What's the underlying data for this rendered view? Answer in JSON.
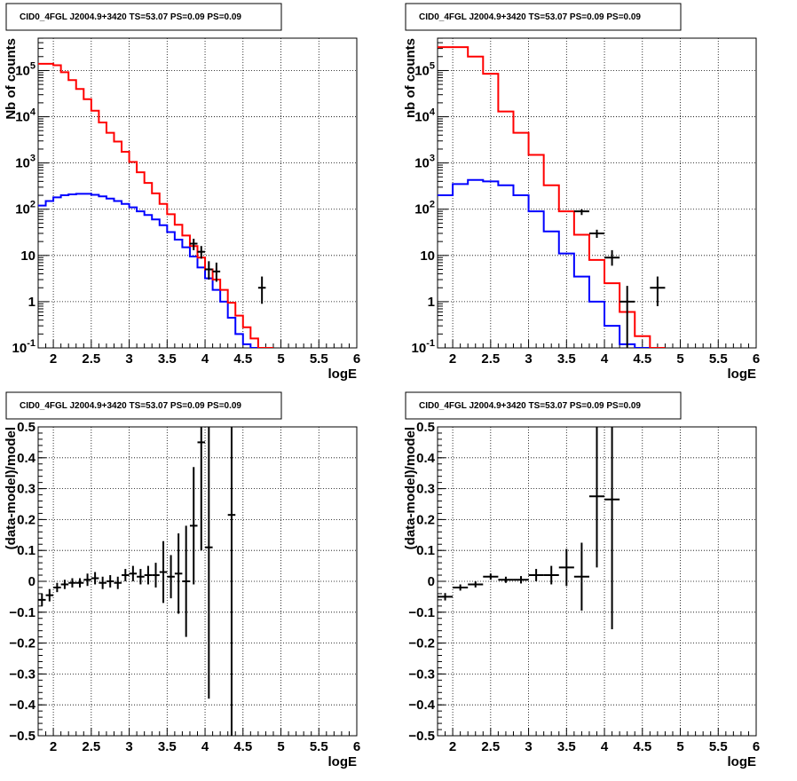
{
  "colors": {
    "data": "#000000",
    "total_model": "#ff0000",
    "component_model": "#0000ff",
    "grid": "#000000"
  },
  "panels": [
    {
      "title": "CID0_4FGL J2004.9+3420 TS=53.07 PS=0.09 PS=0.09",
      "type": "spectrum",
      "xlabel": "logE",
      "ylabel": "Nb of counts",
      "xlim": [
        1.8,
        6.0
      ],
      "ylim_log10": [
        -1,
        5.7
      ],
      "xticks": [
        "2",
        "2.5",
        "3",
        "3.5",
        "4",
        "4.5",
        "5",
        "5.5",
        "6"
      ],
      "yticks": [
        "10^-1",
        "1",
        "10",
        "10^2",
        "10^3",
        "10^4",
        "10^5"
      ],
      "bin_width": 0.1,
      "total_model": [
        140000,
        140000,
        130000,
        92000,
        62000,
        40000,
        24000,
        13500,
        7500,
        4500,
        2900,
        1750,
        1050,
        630,
        370,
        220,
        130,
        78,
        46,
        27,
        16,
        9,
        5,
        3,
        1.8,
        0.95,
        0.5,
        0.28,
        0.16,
        0.1,
        0.1
      ],
      "component_model": [
        120,
        150,
        180,
        200,
        210,
        215,
        215,
        205,
        190,
        170,
        150,
        130,
        110,
        90,
        75,
        60,
        45,
        32,
        22,
        15,
        9.5,
        5.5,
        3.2,
        1.8,
        1,
        0.45,
        0.2,
        0.12,
        0.1
      ],
      "data": [
        {
          "x": 3.85,
          "y": 18,
          "lo": 13,
          "hi": 23
        },
        {
          "x": 3.95,
          "y": 12,
          "lo": 8.5,
          "hi": 16
        },
        {
          "x": 4.05,
          "y": 5,
          "lo": 3,
          "hi": 7.5
        },
        {
          "x": 4.15,
          "y": 4.5,
          "lo": 2.7,
          "hi": 7
        },
        {
          "x": 4.75,
          "y": 2,
          "lo": 0.9,
          "hi": 3.5
        }
      ]
    },
    {
      "title": "CID0_4FGL J2004.9+3420 TS=53.07 PS=0.09 PS=0.09",
      "type": "spectrum",
      "xlabel": "logE",
      "ylabel": "nb of counts",
      "xlim": [
        1.8,
        6.0
      ],
      "ylim_log10": [
        -1,
        5.7
      ],
      "xticks": [
        "2",
        "2.5",
        "3",
        "3.5",
        "4",
        "4.5",
        "5",
        "5.5",
        "6"
      ],
      "yticks": [
        "10^-1",
        "1",
        "10",
        "10^2",
        "10^3",
        "10^4",
        "10^5"
      ],
      "bin_width": 0.2,
      "total_model": [
        320000,
        320000,
        200000,
        85000,
        13000,
        4500,
        1500,
        330,
        90,
        28,
        8,
        2.5,
        0.6,
        0.18,
        0.1
      ],
      "component_model": [
        200,
        350,
        430,
        400,
        330,
        200,
        90,
        33,
        11,
        3.5,
        1,
        0.3,
        0.12,
        0.1
      ],
      "data": [
        {
          "x": 3.7,
          "y": 90,
          "lo": 75,
          "hi": 100
        },
        {
          "x": 3.9,
          "y": 30,
          "lo": 24,
          "hi": 36
        },
        {
          "x": 4.1,
          "y": 9,
          "lo": 6,
          "hi": 13
        },
        {
          "x": 4.3,
          "y": 1,
          "lo": 0.1,
          "hi": 2.2
        },
        {
          "x": 4.7,
          "y": 2,
          "lo": 0.8,
          "hi": 3.5
        }
      ]
    },
    {
      "title": "CID0_4FGL J2004.9+3420 TS=53.07 PS=0.09 PS=0.09",
      "type": "residual",
      "xlabel": "logE",
      "ylabel": "(data-model)/model",
      "xlim": [
        1.8,
        6.0
      ],
      "ylim": [
        -0.5,
        0.5
      ],
      "xticks": [
        "2",
        "2.5",
        "3",
        "3.5",
        "4",
        "4.5",
        "5",
        "5.5",
        "6"
      ],
      "yticks": [
        "−0.5",
        "−0.4",
        "−0.3",
        "−0.2",
        "−0.1",
        "0",
        "0.1",
        "0.2",
        "0.3",
        "0.4",
        "0.5"
      ],
      "bin_width": 0.1,
      "data": [
        {
          "x": 1.85,
          "y": -0.06,
          "err": 0.02
        },
        {
          "x": 1.95,
          "y": -0.045,
          "err": 0.02
        },
        {
          "x": 2.05,
          "y": -0.02,
          "err": 0.015
        },
        {
          "x": 2.15,
          "y": -0.01,
          "err": 0.015
        },
        {
          "x": 2.25,
          "y": -0.005,
          "err": 0.015
        },
        {
          "x": 2.35,
          "y": -0.005,
          "err": 0.015
        },
        {
          "x": 2.45,
          "y": 0.005,
          "err": 0.02
        },
        {
          "x": 2.55,
          "y": 0.01,
          "err": 0.02
        },
        {
          "x": 2.65,
          "y": -0.005,
          "err": 0.02
        },
        {
          "x": 2.75,
          "y": 0.0,
          "err": 0.02
        },
        {
          "x": 2.85,
          "y": -0.005,
          "err": 0.02
        },
        {
          "x": 2.95,
          "y": 0.02,
          "err": 0.02
        },
        {
          "x": 3.05,
          "y": 0.025,
          "err": 0.025
        },
        {
          "x": 3.15,
          "y": 0.015,
          "err": 0.025
        },
        {
          "x": 3.25,
          "y": 0.02,
          "err": 0.03
        },
        {
          "x": 3.35,
          "y": 0.02,
          "err": 0.04
        },
        {
          "x": 3.45,
          "y": 0.03,
          "err": 0.1
        },
        {
          "x": 3.55,
          "y": 0.015,
          "err": 0.07
        },
        {
          "x": 3.65,
          "y": 0.025,
          "err": 0.13
        },
        {
          "x": 3.75,
          "y": 0.0,
          "err": 0.18
        },
        {
          "x": 3.85,
          "y": 0.18,
          "err": 0.19
        },
        {
          "x": 3.95,
          "y": 0.45,
          "err": 0.35
        },
        {
          "x": 4.05,
          "y": 0.11,
          "err": 0.49
        },
        {
          "x": 4.35,
          "y": 0.215,
          "err": 0.75
        }
      ]
    },
    {
      "title": "CID0_4FGL J2004.9+3420 TS=53.07 PS=0.09 PS=0.09",
      "type": "residual",
      "xlabel": "logE",
      "ylabel": "(data-model)/model",
      "xlim": [
        1.8,
        6.0
      ],
      "ylim": [
        -0.5,
        0.5
      ],
      "xticks": [
        "2",
        "2.5",
        "3",
        "3.5",
        "4",
        "4.5",
        "5",
        "5.5",
        "6"
      ],
      "yticks": [
        "−0.5",
        "−0.4",
        "−0.3",
        "−0.2",
        "−0.1",
        "0",
        "0.1",
        "0.2",
        "0.3",
        "0.4",
        "0.5"
      ],
      "bin_width": 0.2,
      "data": [
        {
          "x": 1.9,
          "y": -0.05,
          "err": 0.012
        },
        {
          "x": 2.1,
          "y": -0.02,
          "err": 0.01
        },
        {
          "x": 2.3,
          "y": -0.01,
          "err": 0.01
        },
        {
          "x": 2.5,
          "y": 0.015,
          "err": 0.01
        },
        {
          "x": 2.7,
          "y": 0.005,
          "err": 0.01
        },
        {
          "x": 2.9,
          "y": 0.005,
          "err": 0.012
        },
        {
          "x": 3.1,
          "y": 0.02,
          "err": 0.02
        },
        {
          "x": 3.3,
          "y": 0.02,
          "err": 0.03
        },
        {
          "x": 3.5,
          "y": 0.045,
          "err": 0.06
        },
        {
          "x": 3.7,
          "y": 0.015,
          "err": 0.11
        },
        {
          "x": 3.9,
          "y": 0.275,
          "err": 0.23
        },
        {
          "x": 4.1,
          "y": 0.265,
          "err": 0.42
        }
      ]
    }
  ],
  "chart_data": [
    {
      "type": "line",
      "title": "CID0_4FGL J2004.9+3420 TS=53.07 PS=0.09 PS=0.09",
      "xlabel": "logE",
      "ylabel": "Nb of counts",
      "yscale": "log",
      "xlim": [
        1.8,
        6.0
      ],
      "ylim": [
        0.1,
        500000
      ],
      "grid": true,
      "series": [
        {
          "color": "#ff0000",
          "x_start": 1.8,
          "bin_width": 0.1,
          "values": [
            140000,
            140000,
            130000,
            92000,
            62000,
            40000,
            24000,
            13500,
            7500,
            4500,
            2900,
            1750,
            1050,
            630,
            370,
            220,
            130,
            78,
            46,
            27,
            16,
            9,
            5,
            3,
            1.8,
            0.95,
            0.5,
            0.28,
            0.16,
            0.1,
            0.1
          ]
        },
        {
          "color": "#0000ff",
          "x_start": 1.8,
          "bin_width": 0.1,
          "values": [
            120,
            150,
            180,
            200,
            210,
            215,
            215,
            205,
            190,
            170,
            150,
            130,
            110,
            90,
            75,
            60,
            45,
            32,
            22,
            15,
            9.5,
            5.5,
            3.2,
            1.8,
            1,
            0.45,
            0.2,
            0.12,
            0.1
          ]
        },
        {
          "color": "#000000",
          "x": [
            3.85,
            3.95,
            4.05,
            4.15,
            4.75
          ],
          "values": [
            18,
            12,
            5,
            4.5,
            2
          ]
        }
      ]
    },
    {
      "type": "line",
      "title": "CID0_4FGL J2004.9+3420 TS=53.07 PS=0.09 PS=0.09",
      "xlabel": "logE",
      "ylabel": "nb of counts",
      "yscale": "log",
      "xlim": [
        1.8,
        6.0
      ],
      "ylim": [
        0.1,
        500000
      ],
      "grid": true,
      "series": [
        {
          "color": "#ff0000",
          "x_start": 1.8,
          "bin_width": 0.2,
          "values": [
            320000,
            320000,
            200000,
            85000,
            13000,
            4500,
            1500,
            330,
            90,
            28,
            8,
            2.5,
            0.6,
            0.18,
            0.1
          ]
        },
        {
          "color": "#0000ff",
          "x_start": 1.8,
          "bin_width": 0.2,
          "values": [
            200,
            350,
            430,
            400,
            330,
            200,
            90,
            33,
            11,
            3.5,
            1,
            0.3,
            0.12,
            0.1
          ]
        },
        {
          "color": "#000000",
          "x": [
            3.7,
            3.9,
            4.1,
            4.3,
            4.7
          ],
          "values": [
            90,
            30,
            9,
            1,
            2
          ]
        }
      ]
    },
    {
      "type": "scatter",
      "title": "CID0_4FGL J2004.9+3420 TS=53.07 PS=0.09 PS=0.09",
      "xlabel": "logE",
      "ylabel": "(data-model)/model",
      "xlim": [
        1.8,
        6.0
      ],
      "ylim": [
        -0.5,
        0.5
      ],
      "grid": true,
      "x": [
        1.85,
        1.95,
        2.05,
        2.15,
        2.25,
        2.35,
        2.45,
        2.55,
        2.65,
        2.75,
        2.85,
        2.95,
        3.05,
        3.15,
        3.25,
        3.35,
        3.45,
        3.55,
        3.65,
        3.75,
        3.85,
        3.95,
        4.05,
        4.35
      ],
      "values": [
        -0.06,
        -0.045,
        -0.02,
        -0.01,
        -0.005,
        -0.005,
        0.005,
        0.01,
        -0.005,
        0.0,
        -0.005,
        0.02,
        0.025,
        0.015,
        0.02,
        0.02,
        0.03,
        0.015,
        0.025,
        0.0,
        0.18,
        0.45,
        0.11,
        0.215
      ]
    },
    {
      "type": "scatter",
      "title": "CID0_4FGL J2004.9+3420 TS=53.07 PS=0.09 PS=0.09",
      "xlabel": "logE",
      "ylabel": "(data-model)/model",
      "xlim": [
        1.8,
        6.0
      ],
      "ylim": [
        -0.5,
        0.5
      ],
      "grid": true,
      "x": [
        1.9,
        2.1,
        2.3,
        2.5,
        2.7,
        2.9,
        3.1,
        3.3,
        3.5,
        3.7,
        3.9,
        4.1
      ],
      "values": [
        -0.05,
        -0.02,
        -0.01,
        0.015,
        0.005,
        0.005,
        0.02,
        0.02,
        0.045,
        0.015,
        0.275,
        0.265
      ]
    }
  ]
}
